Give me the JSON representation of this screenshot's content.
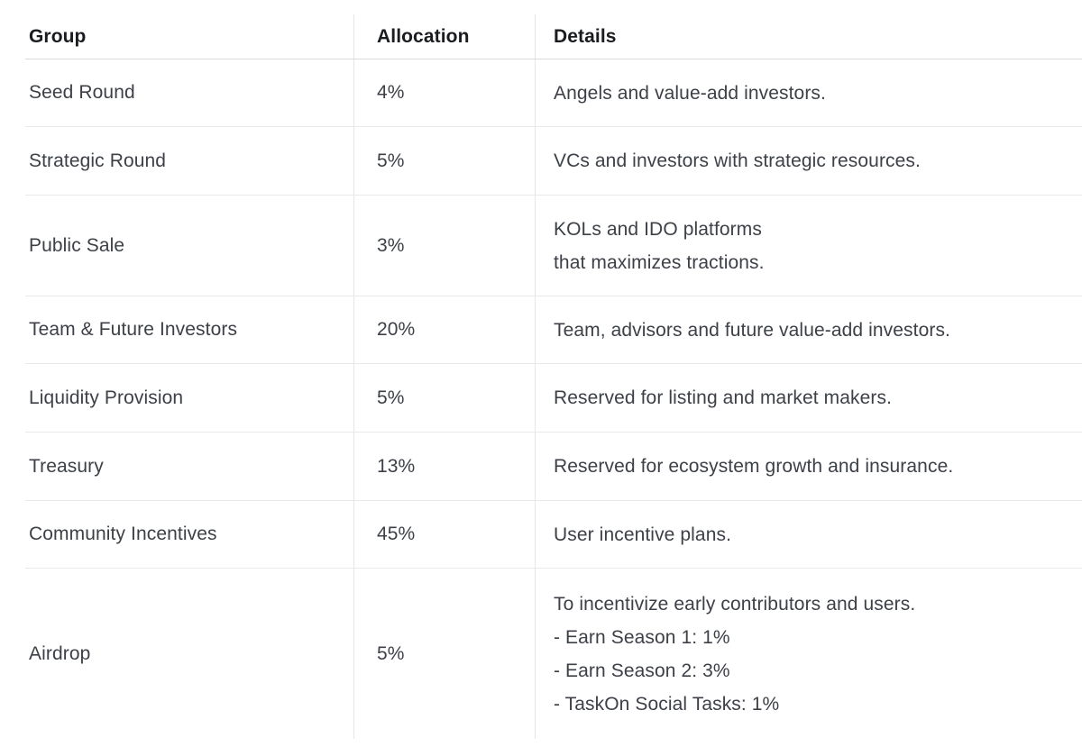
{
  "table": {
    "columns": [
      {
        "label": "Group"
      },
      {
        "label": "Allocation"
      },
      {
        "label": "Details"
      }
    ],
    "rows": [
      {
        "group": "Seed Round",
        "allocation": "4%",
        "details": "Angels and value-add investors."
      },
      {
        "group": "Strategic Round",
        "allocation": "5%",
        "details": "VCs and investors with strategic resources."
      },
      {
        "group": "Public Sale",
        "allocation": "3%",
        "details": "KOLs and IDO platforms\nthat maximizes tractions."
      },
      {
        "group": "Team & Future Investors",
        "allocation": "20%",
        "details": "Team, advisors and future value-add investors."
      },
      {
        "group": "Liquidity Provision",
        "allocation": "5%",
        "details": "Reserved for listing and market makers."
      },
      {
        "group": "Treasury",
        "allocation": "13%",
        "details": "Reserved for ecosystem growth and insurance."
      },
      {
        "group": "Community Incentives",
        "allocation": "45%",
        "details": "User incentive plans."
      },
      {
        "group": "Airdrop",
        "allocation": "5%",
        "details": "To incentivize early contributors and users.\n- Earn Season 1: 1%\n- Earn Season 2: 3%\n- TaskOn Social Tasks: 1%"
      }
    ],
    "colors": {
      "background": "#ffffff",
      "header_text": "#1a1c20",
      "body_text": "#3d4147",
      "row_border": "#e8e9eb",
      "header_border": "#d7d9dc",
      "column_divider": "#e5e6e8"
    }
  }
}
